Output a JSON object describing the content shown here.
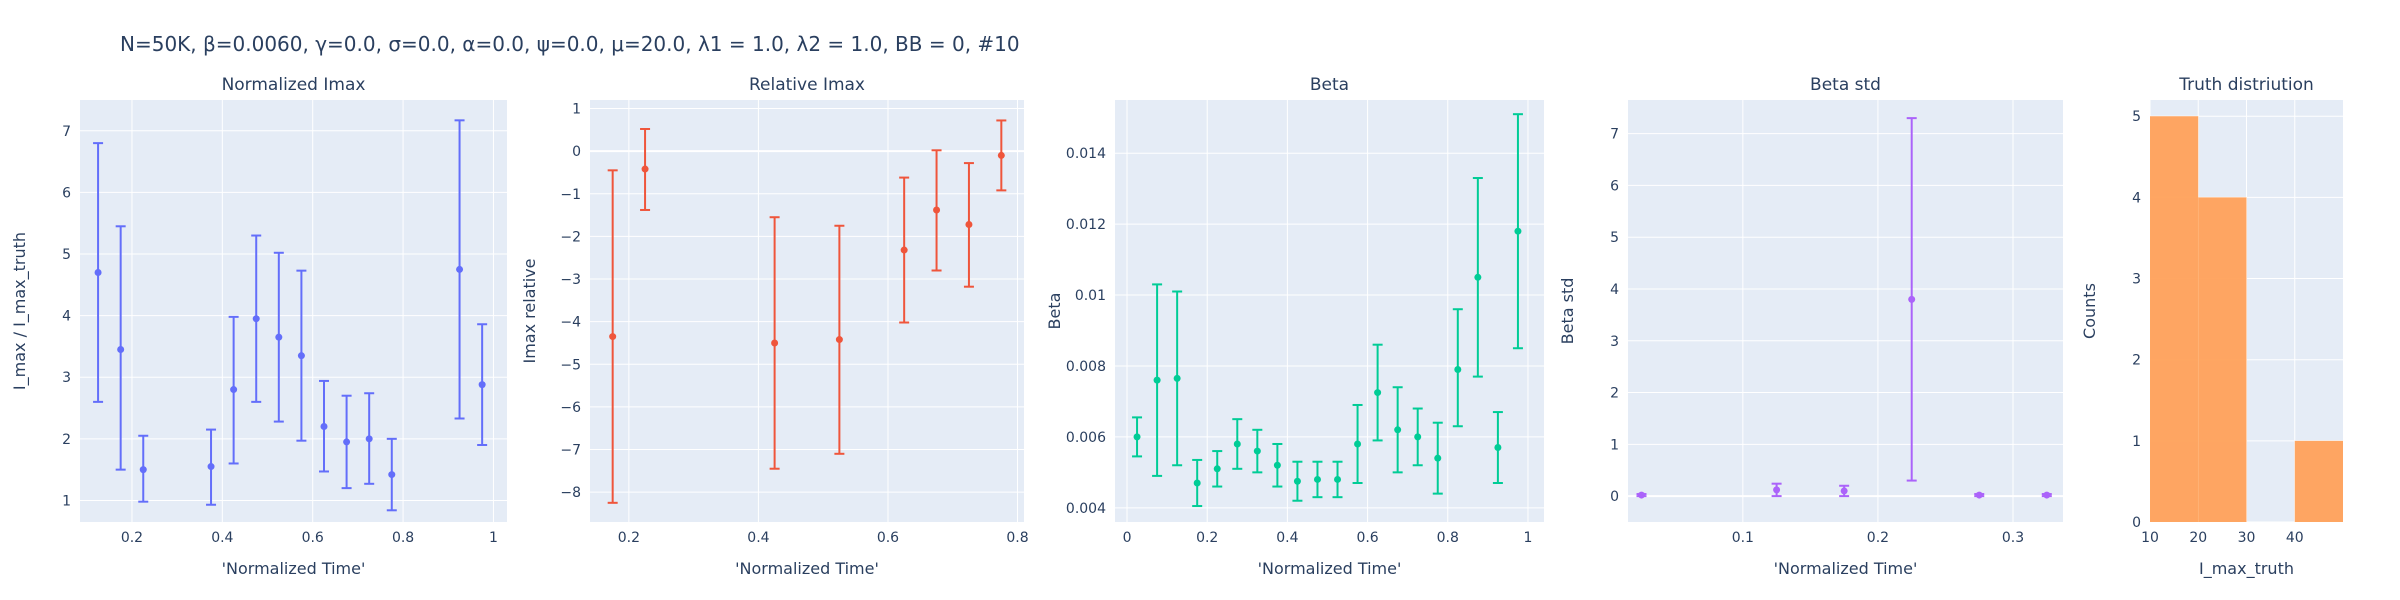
{
  "suptitle": "N=50K, β=0.0060, γ=0.0, σ=0.0,  α=0.0, ψ=0.0, μ=20.0, λ1 = 1.0, λ2 = 1.0, BB = 0, #10",
  "chart_data": [
    {
      "type": "scatter",
      "title": "Normalized Imax",
      "xlabel": "'Normalized Time'",
      "ylabel": "I_max / I_max_truth",
      "color": "#636efa",
      "xlim": [
        0.085,
        1.03
      ],
      "ylim": [
        0.65,
        7.5
      ],
      "xticks": [
        0.2,
        0.4,
        0.6,
        0.8,
        1
      ],
      "xtick_labels": [
        "0.2",
        "0.4",
        "0.6",
        "0.8",
        "1"
      ],
      "yticks": [
        1,
        2,
        3,
        4,
        5,
        6,
        7
      ],
      "ytick_labels": [
        "1",
        "2",
        "3",
        "4",
        "5",
        "6",
        "7"
      ],
      "points": [
        {
          "x": 0.125,
          "y": 4.7,
          "lo": 2.6,
          "hi": 6.8
        },
        {
          "x": 0.175,
          "y": 3.45,
          "lo": 1.5,
          "hi": 5.45
        },
        {
          "x": 0.225,
          "y": 1.5,
          "lo": 0.98,
          "hi": 2.05
        },
        {
          "x": 0.375,
          "y": 1.55,
          "lo": 0.93,
          "hi": 2.15
        },
        {
          "x": 0.425,
          "y": 2.8,
          "lo": 1.6,
          "hi": 3.98
        },
        {
          "x": 0.475,
          "y": 3.95,
          "lo": 2.6,
          "hi": 5.3
        },
        {
          "x": 0.525,
          "y": 3.65,
          "lo": 2.28,
          "hi": 5.02
        },
        {
          "x": 0.575,
          "y": 3.35,
          "lo": 1.97,
          "hi": 4.73
        },
        {
          "x": 0.625,
          "y": 2.2,
          "lo": 1.47,
          "hi": 2.94
        },
        {
          "x": 0.675,
          "y": 1.95,
          "lo": 1.2,
          "hi": 2.7
        },
        {
          "x": 0.725,
          "y": 2.0,
          "lo": 1.27,
          "hi": 2.74
        },
        {
          "x": 0.775,
          "y": 1.42,
          "lo": 0.84,
          "hi": 2.0
        },
        {
          "x": 0.925,
          "y": 4.75,
          "lo": 2.33,
          "hi": 7.17
        },
        {
          "x": 0.975,
          "y": 2.88,
          "lo": 1.9,
          "hi": 3.86
        }
      ]
    },
    {
      "type": "scatter",
      "title": "Relative Imax",
      "xlabel": "'Normalized Time'",
      "ylabel": "Imax relative",
      "color": "#ef553b",
      "xlim": [
        0.14,
        0.81
      ],
      "ylim": [
        -8.7,
        1.2
      ],
      "xticks": [
        0.2,
        0.4,
        0.6,
        0.8
      ],
      "xtick_labels": [
        "0.2",
        "0.4",
        "0.6",
        "0.8"
      ],
      "yticks": [
        -8,
        -7,
        -6,
        -5,
        -4,
        -3,
        -2,
        -1,
        0,
        1
      ],
      "ytick_labels": [
        "−8",
        "−7",
        "−6",
        "−5",
        "−4",
        "−3",
        "−2",
        "−1",
        "0",
        "1"
      ],
      "points": [
        {
          "x": 0.175,
          "y": -4.35,
          "lo": -8.25,
          "hi": -0.45
        },
        {
          "x": 0.225,
          "y": -0.42,
          "lo": -1.38,
          "hi": 0.52
        },
        {
          "x": 0.425,
          "y": -4.5,
          "lo": -7.45,
          "hi": -1.55
        },
        {
          "x": 0.525,
          "y": -4.42,
          "lo": -7.1,
          "hi": -1.75
        },
        {
          "x": 0.625,
          "y": -2.32,
          "lo": -4.02,
          "hi": -0.62
        },
        {
          "x": 0.675,
          "y": -1.38,
          "lo": -2.8,
          "hi": 0.02
        },
        {
          "x": 0.725,
          "y": -1.72,
          "lo": -3.18,
          "hi": -0.28
        },
        {
          "x": 0.775,
          "y": -0.1,
          "lo": -0.92,
          "hi": 0.72
        }
      ]
    },
    {
      "type": "scatter",
      "title": "Beta",
      "xlabel": "'Normalized Time'",
      "ylabel": "Beta",
      "color": "#00cc96",
      "xlim": [
        -0.03,
        1.04
      ],
      "ylim": [
        0.0036,
        0.0155
      ],
      "xticks": [
        0,
        0.2,
        0.4,
        0.6,
        0.8,
        1
      ],
      "xtick_labels": [
        "0",
        "0.2",
        "0.4",
        "0.6",
        "0.8",
        "1"
      ],
      "yticks": [
        0.004,
        0.006,
        0.008,
        0.01,
        0.012,
        0.014
      ],
      "ytick_labels": [
        "0.004",
        "0.006",
        "0.008",
        "0.01",
        "0.012",
        "0.014"
      ],
      "points": [
        {
          "x": 0.025,
          "y": 0.006,
          "lo": 0.00545,
          "hi": 0.00655
        },
        {
          "x": 0.075,
          "y": 0.0076,
          "lo": 0.0049,
          "hi": 0.0103
        },
        {
          "x": 0.125,
          "y": 0.00765,
          "lo": 0.0052,
          "hi": 0.0101
        },
        {
          "x": 0.175,
          "y": 0.0047,
          "lo": 0.00405,
          "hi": 0.00535
        },
        {
          "x": 0.225,
          "y": 0.0051,
          "lo": 0.0046,
          "hi": 0.0056
        },
        {
          "x": 0.275,
          "y": 0.0058,
          "lo": 0.0051,
          "hi": 0.0065
        },
        {
          "x": 0.325,
          "y": 0.0056,
          "lo": 0.005,
          "hi": 0.0062
        },
        {
          "x": 0.375,
          "y": 0.0052,
          "lo": 0.0046,
          "hi": 0.0058
        },
        {
          "x": 0.425,
          "y": 0.00475,
          "lo": 0.0042,
          "hi": 0.0053
        },
        {
          "x": 0.475,
          "y": 0.0048,
          "lo": 0.0043,
          "hi": 0.0053
        },
        {
          "x": 0.525,
          "y": 0.0048,
          "lo": 0.0043,
          "hi": 0.0053
        },
        {
          "x": 0.575,
          "y": 0.0058,
          "lo": 0.0047,
          "hi": 0.0069
        },
        {
          "x": 0.625,
          "y": 0.00725,
          "lo": 0.0059,
          "hi": 0.0086
        },
        {
          "x": 0.675,
          "y": 0.0062,
          "lo": 0.005,
          "hi": 0.0074
        },
        {
          "x": 0.725,
          "y": 0.006,
          "lo": 0.0052,
          "hi": 0.0068
        },
        {
          "x": 0.775,
          "y": 0.0054,
          "lo": 0.0044,
          "hi": 0.0064
        },
        {
          "x": 0.825,
          "y": 0.0079,
          "lo": 0.0063,
          "hi": 0.0096
        },
        {
          "x": 0.875,
          "y": 0.0105,
          "lo": 0.0077,
          "hi": 0.0133
        },
        {
          "x": 0.925,
          "y": 0.0057,
          "lo": 0.0047,
          "hi": 0.0067
        },
        {
          "x": 0.975,
          "y": 0.0118,
          "lo": 0.0085,
          "hi": 0.0151
        }
      ]
    },
    {
      "type": "scatter",
      "title": "Beta std",
      "xlabel": "'Normalized Time'",
      "ylabel": "Beta std",
      "color": "#ab63fa",
      "xlim": [
        0.015,
        0.337
      ],
      "ylim": [
        -0.5,
        7.65
      ],
      "xticks": [
        0.1,
        0.2,
        0.3
      ],
      "xtick_labels": [
        "0.1",
        "0.2",
        "0.3"
      ],
      "yticks": [
        0,
        1,
        2,
        3,
        4,
        5,
        6,
        7
      ],
      "ytick_labels": [
        "0",
        "1",
        "2",
        "3",
        "4",
        "5",
        "6",
        "7"
      ],
      "points": [
        {
          "x": 0.025,
          "y": 0.02,
          "lo": 0.0,
          "hi": 0.04
        },
        {
          "x": 0.125,
          "y": 0.12,
          "lo": 0.0,
          "hi": 0.24
        },
        {
          "x": 0.175,
          "y": 0.1,
          "lo": 0.0,
          "hi": 0.2
        },
        {
          "x": 0.225,
          "y": 3.8,
          "lo": 0.3,
          "hi": 7.3
        },
        {
          "x": 0.275,
          "y": 0.02,
          "lo": 0.0,
          "hi": 0.04
        },
        {
          "x": 0.325,
          "y": 0.02,
          "lo": 0.0,
          "hi": 0.04
        }
      ]
    },
    {
      "type": "bar",
      "title": "Truth distriution",
      "xlabel": "I_max_truth",
      "ylabel": "Counts",
      "color": "#ffa15a",
      "xlim": [
        10,
        50
      ],
      "ylim": [
        0,
        5.2
      ],
      "xticks": [
        10,
        20,
        30,
        40
      ],
      "xtick_labels": [
        "10",
        "20",
        "30",
        "40"
      ],
      "yticks": [
        0,
        1,
        2,
        3,
        4,
        5
      ],
      "ytick_labels": [
        "0",
        "1",
        "2",
        "3",
        "4",
        "5"
      ],
      "bins": [
        {
          "x0": 10,
          "x1": 20,
          "count": 5
        },
        {
          "x0": 20,
          "x1": 30,
          "count": 4
        },
        {
          "x0": 30,
          "x1": 40,
          "count": 0
        },
        {
          "x0": 40,
          "x1": 50,
          "count": 1
        }
      ]
    }
  ]
}
